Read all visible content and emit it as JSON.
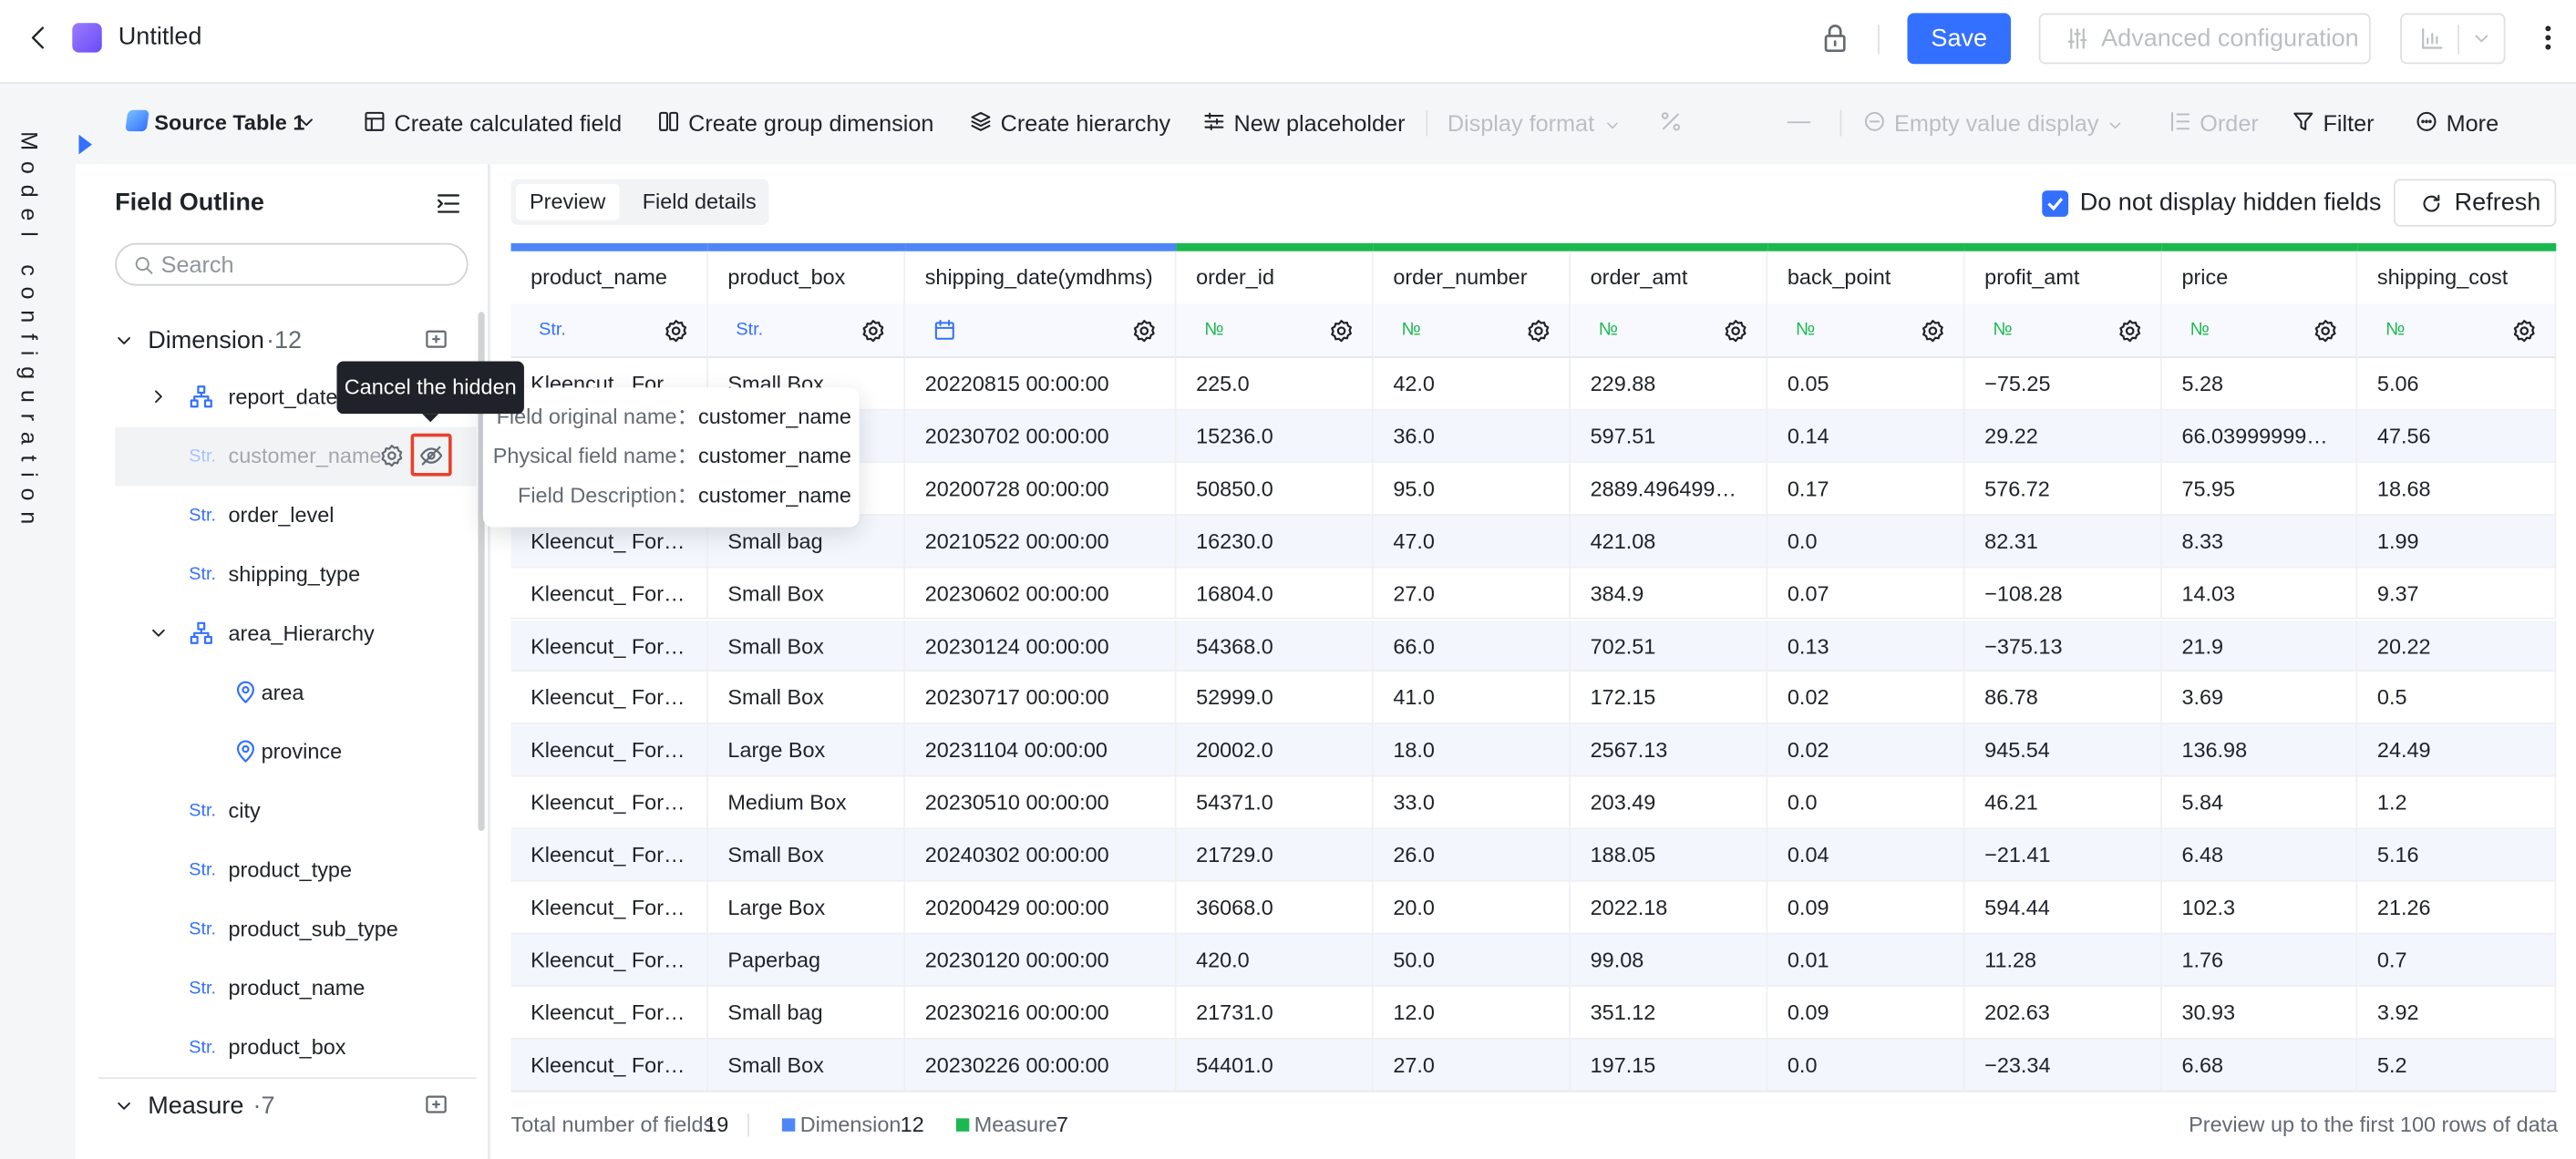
{
  "header": {
    "title": "Untitled",
    "save": "Save",
    "advanced": "Advanced configuration"
  },
  "side_tab": "Model configuration",
  "toolbar": {
    "source": "Source Table 1",
    "calculated": "Create calculated field",
    "group": "Create group dimension",
    "hierarchy": "Create hierarchy",
    "placeholder": "New placeholder",
    "display_format": "Display format",
    "empty_value": "Empty value display",
    "order": "Order",
    "filter": "Filter",
    "more": "More"
  },
  "outline": {
    "title": "Field Outline",
    "search": "Search",
    "dimension": "Dimension",
    "dimension_count": "·12",
    "measure": "Measure",
    "measure_count": "·7",
    "fields": [
      {
        "name": "report_date",
        "icon": "hierarchy",
        "level": 0,
        "expand": "closed"
      },
      {
        "name": "customer_name",
        "tag": "Str.",
        "level": 0,
        "hidden": true
      },
      {
        "name": "order_level",
        "tag": "Str.",
        "level": 0
      },
      {
        "name": "shipping_type",
        "tag": "Str.",
        "level": 0
      },
      {
        "name": "area_Hierarchy",
        "icon": "hierarchy",
        "level": 0,
        "expand": "open"
      },
      {
        "name": "area",
        "icon": "location",
        "level": 1
      },
      {
        "name": "province",
        "icon": "location",
        "level": 1
      },
      {
        "name": "city",
        "tag": "Str.",
        "level": 0
      },
      {
        "name": "product_type",
        "tag": "Str.",
        "level": 0
      },
      {
        "name": "product_sub_type",
        "tag": "Str.",
        "level": 0
      },
      {
        "name": "product_name",
        "tag": "Str.",
        "level": 0
      },
      {
        "name": "product_box",
        "tag": "Str.",
        "level": 0
      }
    ]
  },
  "tooltip": "Cancel the hidden",
  "field_info": [
    {
      "label": "Field original name：",
      "value": "customer_name"
    },
    {
      "label": "Physical field name：",
      "value": "customer_name"
    },
    {
      "label": "Field Description：",
      "value": "customer_name"
    }
  ],
  "main": {
    "tabs": [
      "Preview",
      "Field details"
    ],
    "hide_checkbox": "Do not display hidden fields",
    "refresh": "Refresh"
  },
  "table": {
    "columns": [
      {
        "name": "product_name",
        "tag": "Str.",
        "kind": "dimension"
      },
      {
        "name": "product_box",
        "tag": "Str.",
        "kind": "dimension"
      },
      {
        "name": "shipping_date(ymdhms)",
        "icon": "date",
        "kind": "dimension"
      },
      {
        "name": "order_id",
        "tag": "№",
        "kind": "measure"
      },
      {
        "name": "order_number",
        "tag": "№",
        "kind": "measure"
      },
      {
        "name": "order_amt",
        "tag": "№",
        "kind": "measure"
      },
      {
        "name": "back_point",
        "tag": "№",
        "kind": "measure"
      },
      {
        "name": "profit_amt",
        "tag": "№",
        "kind": "measure"
      },
      {
        "name": "price",
        "tag": "№",
        "kind": "measure"
      },
      {
        "name": "shipping_cost",
        "tag": "№",
        "kind": "measure"
      }
    ],
    "rows": [
      [
        "Kleencut_ Forg...",
        "Small Box",
        "20220815 00:00:00",
        "225.0",
        "42.0",
        "229.88",
        "0.05",
        "−75.25",
        "5.28",
        "5.06"
      ],
      [
        null,
        null,
        "20230702 00:00:00",
        "15236.0",
        "36.0",
        "597.51",
        "0.14",
        "29.22",
        "66.0399999999...",
        "47.56"
      ],
      [
        null,
        null,
        "20200728 00:00:00",
        "50850.0",
        "95.0",
        "2889.49649999...",
        "0.17",
        "576.72",
        "75.95",
        "18.68"
      ],
      [
        "Kleencut_ Forg...",
        "Small bag",
        "20210522 00:00:00",
        "16230.0",
        "47.0",
        "421.08",
        "0.0",
        "82.31",
        "8.33",
        "1.99"
      ],
      [
        "Kleencut_ Forg...",
        "Small Box",
        "20230602 00:00:00",
        "16804.0",
        "27.0",
        "384.9",
        "0.07",
        "−108.28",
        "14.03",
        "9.37"
      ],
      [
        "Kleencut_ Forg...",
        "Small Box",
        "20230124 00:00:00",
        "54368.0",
        "66.0",
        "702.51",
        "0.13",
        "−375.13",
        "21.9",
        "20.22"
      ],
      [
        "Kleencut_ Forg...",
        "Small Box",
        "20230717 00:00:00",
        "52999.0",
        "41.0",
        "172.15",
        "0.02",
        "86.78",
        "3.69",
        "0.5"
      ],
      [
        "Kleencut_ Forg...",
        "Large Box",
        "20231104 00:00:00",
        "20002.0",
        "18.0",
        "2567.13",
        "0.02",
        "945.54",
        "136.98",
        "24.49"
      ],
      [
        "Kleencut_ Forg...",
        "Medium Box",
        "20230510 00:00:00",
        "54371.0",
        "33.0",
        "203.49",
        "0.0",
        "46.21",
        "5.84",
        "1.2"
      ],
      [
        "Kleencut_ Forg...",
        "Small Box",
        "20240302 00:00:00",
        "21729.0",
        "26.0",
        "188.05",
        "0.04",
        "−21.41",
        "6.48",
        "5.16"
      ],
      [
        "Kleencut_ Forg...",
        "Large Box",
        "20200429 00:00:00",
        "36068.0",
        "20.0",
        "2022.18",
        "0.09",
        "594.44",
        "102.3",
        "21.26"
      ],
      [
        "Kleencut_ Forg...",
        "Paperbag",
        "20230120 00:00:00",
        "420.0",
        "50.0",
        "99.08",
        "0.01",
        "11.28",
        "1.76",
        "0.7"
      ],
      [
        "Kleencut_ Forg...",
        "Small bag",
        "20230216 00:00:00",
        "21731.0",
        "12.0",
        "351.12",
        "0.09",
        "202.63",
        "30.93",
        "3.92"
      ],
      [
        "Kleencut_ Forg...",
        "Small Box",
        "20230226 00:00:00",
        "54401.0",
        "27.0",
        "197.15",
        "0.0",
        "−23.34",
        "6.68",
        "5.2"
      ]
    ]
  },
  "footer": {
    "total_label": "Total number of fields",
    "total": 19,
    "dimension_label": "Dimension",
    "dimension": 12,
    "measure_label": "Measure",
    "measure": 7,
    "note": "Preview up to the first 100 rows of data"
  }
}
